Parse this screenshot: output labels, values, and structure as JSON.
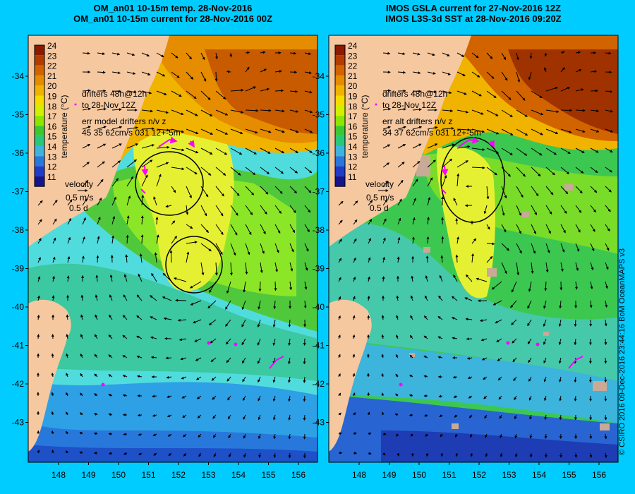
{
  "panels": [
    {
      "id": "left",
      "title_line1": "OM_an01 10-15m temp. 28-Nov-2016",
      "title_line2": "OM_an01 10-15m current for 28-Nov-2016 00Z",
      "drifters_label_1": "drifters 48h@12h",
      "drifters_label_2": "to 28-Nov 12Z",
      "err_label": "err model drifters n/v z",
      "err_values": "45 35 62cm/s 031 12+-5m"
    },
    {
      "id": "right",
      "title_line1": "IMOS GSLA current for 27-Nov-2016 12Z",
      "title_line2": "IMOS L3S-3d SST at 28-Nov-2016 09:20Z",
      "drifters_label_1": "drifters 48h@12h",
      "drifters_label_2": "to 28-Nov 12Z",
      "err_label": "err alt drifters n/v z",
      "err_values": "34 37 62cm/s 031 12+-5m"
    }
  ],
  "colorbar": {
    "label": "temperature (°C)",
    "ticks": [
      "24",
      "23",
      "22",
      "21",
      "20",
      "19",
      "18",
      "17",
      "16",
      "15",
      "14",
      "13",
      "12",
      "11"
    ],
    "colors": [
      "#8b1a00",
      "#b33c00",
      "#d26400",
      "#e68c00",
      "#f0b400",
      "#f5dc00",
      "#d2f000",
      "#8ce600",
      "#3cc832",
      "#28c878",
      "#3cb4dc",
      "#2878dc",
      "#1e3cc8",
      "#14148c"
    ]
  },
  "velocity_legend": {
    "label": "velocity",
    "speed": "0.5 m/s",
    "time": "0.5 d"
  },
  "x_ticks": [
    "148",
    "149",
    "150",
    "151",
    "152",
    "153",
    "154",
    "155",
    "156"
  ],
  "y_ticks": [
    "-34",
    "-35",
    "-36",
    "-37",
    "-38",
    "-39",
    "-40",
    "-41",
    "-42",
    "-43"
  ],
  "credit": "© CSIRO 2016  09-Dec-2016 23:44:16 BoM OceanMAPS v3",
  "colors": {
    "background": "#00ccff",
    "land": "#f5c8a0",
    "drifter": "#ff00ff",
    "no_data": "#c8aa96"
  },
  "icons": [
    "current-arrow",
    "drifter-track",
    "velocity-scale-arrow"
  ]
}
